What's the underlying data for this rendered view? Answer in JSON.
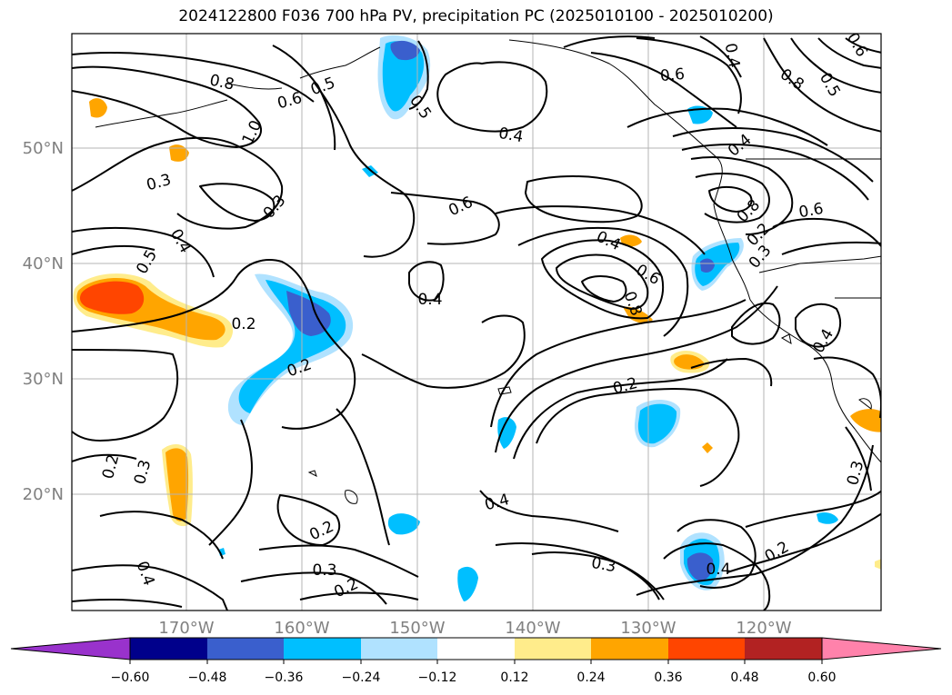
{
  "title": "2024122800 F036 700 hPa PV, precipitation PC (2025010100 - 2025010200)",
  "map": {
    "lat_labels": [
      "50°N",
      "40°N",
      "30°N",
      "20°N"
    ],
    "lon_labels": [
      "170°W",
      "160°W",
      "150°W",
      "140°W",
      "130°W",
      "120°W"
    ],
    "contour_labels": [
      "0.8",
      "0.6",
      "0.5",
      "1.0",
      "0.3",
      "0.3",
      "0.4",
      "0.5",
      "0.2",
      "0.2",
      "0.5",
      "0.4",
      "0.6",
      "0.4",
      "0.6",
      "0.8",
      "0.4",
      "0.6",
      "0.5",
      "0.4",
      "0.8",
      "0.6",
      "0.4",
      "0.6",
      "0.8",
      "0.2",
      "0.4",
      "0.2",
      "0.3",
      "0.2",
      "0.3",
      "0.4",
      "0.2",
      "0.3",
      "0.4",
      "0.2",
      "0.3",
      "0.4",
      "0.2",
      "0.3"
    ]
  },
  "colorbar": {
    "ticks": [
      "−0.60",
      "−0.48",
      "−0.36",
      "−0.24",
      "−0.12",
      "0.12",
      "0.24",
      "0.36",
      "0.48",
      "0.60"
    ],
    "colors": [
      "#9932cc",
      "#00008b",
      "#3a5fcd",
      "#00bfff",
      "#b0e2ff",
      "#ffffff",
      "#ffec8b",
      "#ffa500",
      "#ff4500",
      "#b22222",
      "#ff82ab"
    ]
  }
}
